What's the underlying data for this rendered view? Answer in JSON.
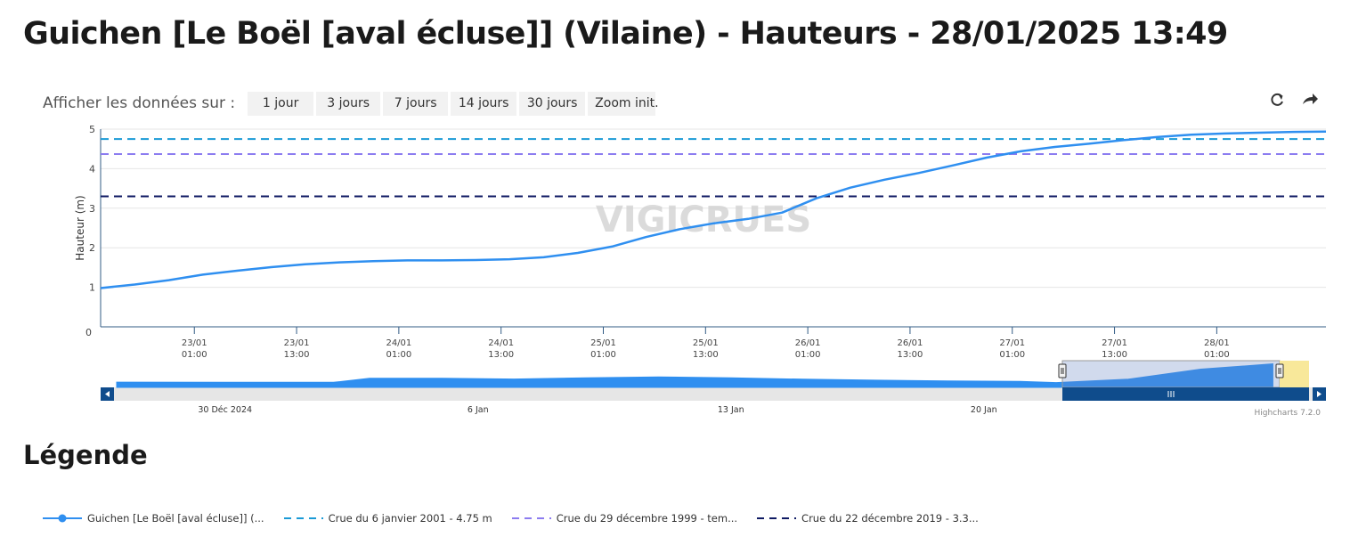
{
  "header": {
    "title": "Guichen [Le Boël [aval écluse]] (Vilaine) - Hauteurs - 28/01/2025 13:49"
  },
  "range_selector": {
    "label": "Afficher les données sur :",
    "buttons": [
      "1 jour",
      "3 jours",
      "7 jours",
      "14 jours",
      "30 jours",
      "Zoom init."
    ]
  },
  "toolbar": {
    "icons": [
      "refresh-icon",
      "share-icon"
    ]
  },
  "watermark": "VIGICRUES",
  "credits": "Highcharts 7.2.0",
  "legend": {
    "title": "Légende",
    "items": [
      "Guichen [Le Boël [aval écluse]] (...",
      "Crue du 6 janvier 2001 - 4.75 m",
      "Crue du 29 décembre 1999 - tem...",
      "Crue du 22 décembre 2019 - 3.3..."
    ]
  },
  "chart_data": {
    "type": "line",
    "ylabel": "Hauteur (m)",
    "ylim": [
      0,
      5
    ],
    "yticks": [
      "0",
      "1",
      "2",
      "3",
      "4",
      "5"
    ],
    "xlim": [
      "22/01 14:00",
      "28/01 13:49"
    ],
    "xticks": [
      [
        "23/01",
        "01:00"
      ],
      [
        "23/01",
        "13:00"
      ],
      [
        "24/01",
        "01:00"
      ],
      [
        "24/01",
        "13:00"
      ],
      [
        "25/01",
        "01:00"
      ],
      [
        "25/01",
        "13:00"
      ],
      [
        "26/01",
        "01:00"
      ],
      [
        "26/01",
        "13:00"
      ],
      [
        "27/01",
        "01:00"
      ],
      [
        "27/01",
        "13:00"
      ],
      [
        "28/01",
        "01:00"
      ]
    ],
    "series": [
      {
        "name": "Guichen [Le Boël [aval écluse]] (...",
        "color": "#2f8ff0",
        "x": [
          "22/01 14:00",
          "22/01 18:00",
          "22/01 22:00",
          "23/01 02:00",
          "23/01 06:00",
          "23/01 10:00",
          "23/01 14:00",
          "23/01 18:00",
          "23/01 22:00",
          "24/01 02:00",
          "24/01 06:00",
          "24/01 10:00",
          "24/01 14:00",
          "24/01 18:00",
          "24/01 22:00",
          "25/01 02:00",
          "25/01 06:00",
          "25/01 10:00",
          "25/01 14:00",
          "25/01 18:00",
          "25/01 22:00",
          "26/01 02:00",
          "26/01 06:00",
          "26/01 10:00",
          "26/01 14:00",
          "26/01 18:00",
          "26/01 22:00",
          "27/01 02:00",
          "27/01 06:00",
          "27/01 10:00",
          "27/01 14:00",
          "27/01 18:00",
          "27/01 22:00",
          "28/01 02:00",
          "28/01 06:00",
          "28/01 10:00",
          "28/01 13:49"
        ],
        "values": [
          0.98,
          1.07,
          1.18,
          1.32,
          1.42,
          1.51,
          1.58,
          1.63,
          1.66,
          1.68,
          1.68,
          1.69,
          1.71,
          1.76,
          1.87,
          2.03,
          2.27,
          2.47,
          2.62,
          2.73,
          2.89,
          3.25,
          3.52,
          3.72,
          3.89,
          4.08,
          4.28,
          4.44,
          4.55,
          4.63,
          4.72,
          4.8,
          4.86,
          4.89,
          4.91,
          4.93,
          4.94
        ]
      }
    ],
    "thresholds": [
      {
        "name": "Crue du 6 janvier 2001 - 4.75 m",
        "value": 4.75,
        "color": "#1a9ad6"
      },
      {
        "name": "Crue du 29 décembre 1999 - tem...",
        "value": 4.37,
        "color": "#8c7cf0"
      },
      {
        "name": "Crue du 22 décembre 2019 - 3.3...",
        "value": 3.3,
        "color": "#0f1a63"
      }
    ],
    "navigator": {
      "labels": [
        "30 Déc 2024",
        "6 Jan",
        "13 Jan",
        "20 Jan"
      ],
      "x": [
        "27/12",
        "30/12",
        "02/01",
        "03/01",
        "05/01",
        "07/01",
        "09/01",
        "11/01",
        "13/01",
        "15/01",
        "17/01",
        "19/01",
        "21/01",
        "22/01",
        "24/01",
        "26/01",
        "28/01"
      ],
      "values": [
        1.1,
        1.05,
        1.05,
        1.9,
        1.9,
        1.75,
        2.0,
        2.2,
        2.0,
        1.7,
        1.5,
        1.35,
        1.25,
        1.0,
        1.7,
        3.8,
        4.9
      ]
    }
  }
}
